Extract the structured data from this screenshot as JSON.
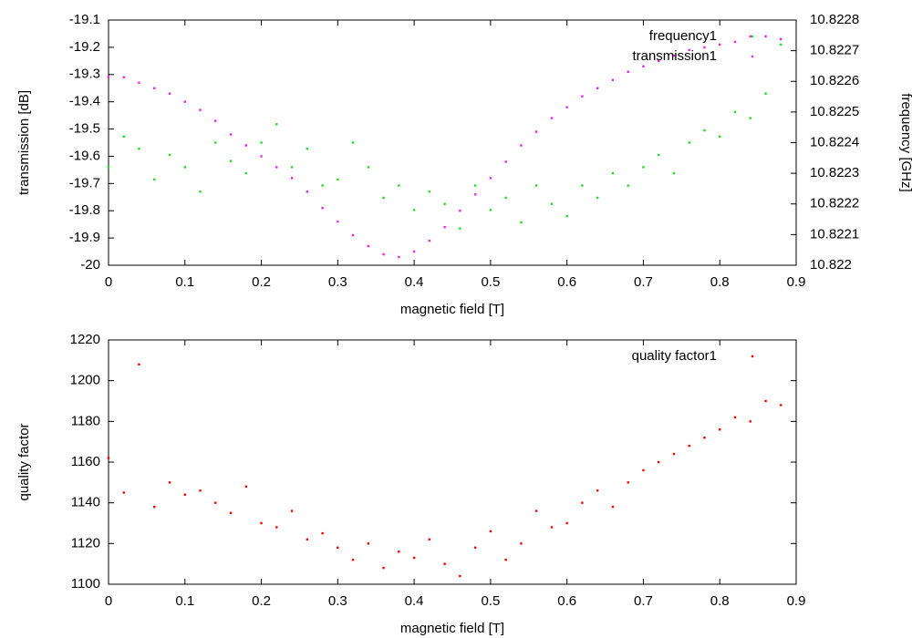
{
  "chart_data": [
    {
      "type": "scatter",
      "xlabel": "magnetic field [T]",
      "ylabel": "transmission [dB]",
      "y2label": "frequency [GHz]",
      "xlim": [
        0,
        0.9
      ],
      "xticks": [
        0,
        0.1,
        0.2,
        0.3,
        0.4,
        0.5,
        0.6,
        0.7,
        0.8,
        0.9
      ],
      "ylim": [
        -20,
        -19.1
      ],
      "yticks": [
        -20,
        -19.9,
        -19.8,
        -19.7,
        -19.6,
        -19.5,
        -19.4,
        -19.3,
        -19.2,
        -19.1
      ],
      "y2lim": [
        10.822,
        10.8228
      ],
      "y2ticks": [
        10.822,
        10.8221,
        10.8222,
        10.8223,
        10.8224,
        10.8225,
        10.8226,
        10.8227,
        10.8228
      ],
      "x": [
        0,
        0.02,
        0.04,
        0.06,
        0.08,
        0.1,
        0.12,
        0.14,
        0.16,
        0.18,
        0.2,
        0.22,
        0.24,
        0.26,
        0.28,
        0.3,
        0.32,
        0.34,
        0.36,
        0.38,
        0.4,
        0.42,
        0.44,
        0.46,
        0.48,
        0.5,
        0.52,
        0.54,
        0.56,
        0.58,
        0.6,
        0.62,
        0.64,
        0.66,
        0.68,
        0.7,
        0.72,
        0.74,
        0.76,
        0.78,
        0.8,
        0.82,
        0.84,
        0.86,
        0.88
      ],
      "series": [
        {
          "name": "frequency1",
          "color": "#22dd22",
          "axis": "y2",
          "values": [
            10.82232,
            10.82242,
            10.82238,
            10.82228,
            10.82236,
            10.82232,
            10.82224,
            10.8224,
            10.82234,
            10.8223,
            10.8224,
            10.82246,
            10.82232,
            10.82238,
            10.82226,
            10.82228,
            10.8224,
            10.82232,
            10.82222,
            10.82226,
            10.82218,
            10.82224,
            10.8222,
            10.82212,
            10.82226,
            10.82218,
            10.82222,
            10.82214,
            10.82226,
            10.8222,
            10.82216,
            10.82226,
            10.82222,
            10.8223,
            10.82226,
            10.82232,
            10.82236,
            10.8223,
            10.8224,
            10.82244,
            10.82242,
            10.8225,
            10.82248,
            10.82256,
            10.82272
          ]
        },
        {
          "name": "transmission1",
          "color": "#ee22ee",
          "values": [
            -19.31,
            -19.31,
            -19.33,
            -19.35,
            -19.37,
            -19.4,
            -19.43,
            -19.47,
            -19.52,
            -19.56,
            -19.6,
            -19.64,
            -19.68,
            -19.73,
            -19.79,
            -19.84,
            -19.89,
            -19.93,
            -19.96,
            -19.97,
            -19.95,
            -19.91,
            -19.86,
            -19.8,
            -19.74,
            -19.68,
            -19.62,
            -19.56,
            -19.51,
            -19.46,
            -19.42,
            -19.38,
            -19.35,
            -19.32,
            -19.29,
            -19.27,
            -19.25,
            -19.23,
            -19.21,
            -19.2,
            -19.19,
            -19.18,
            -19.16,
            -19.16,
            -19.17
          ]
        }
      ]
    },
    {
      "type": "scatter",
      "xlabel": "magnetic field [T]",
      "ylabel": "quality factor",
      "xlim": [
        0,
        0.9
      ],
      "xticks": [
        0,
        0.1,
        0.2,
        0.3,
        0.4,
        0.5,
        0.6,
        0.7,
        0.8,
        0.9
      ],
      "ylim": [
        1100,
        1220
      ],
      "yticks": [
        1100,
        1120,
        1140,
        1160,
        1180,
        1200,
        1220
      ],
      "x": [
        0,
        0.02,
        0.04,
        0.06,
        0.08,
        0.1,
        0.12,
        0.14,
        0.16,
        0.18,
        0.2,
        0.22,
        0.24,
        0.26,
        0.28,
        0.3,
        0.32,
        0.34,
        0.36,
        0.38,
        0.4,
        0.42,
        0.44,
        0.46,
        0.48,
        0.5,
        0.52,
        0.54,
        0.56,
        0.58,
        0.6,
        0.62,
        0.64,
        0.66,
        0.68,
        0.7,
        0.72,
        0.74,
        0.76,
        0.78,
        0.8,
        0.82,
        0.84,
        0.86,
        0.88
      ],
      "series": [
        {
          "name": "quality factor1",
          "color": "#ff0000",
          "values": [
            1162,
            1145,
            1208,
            1138,
            1150,
            1144,
            1146,
            1140,
            1135,
            1148,
            1130,
            1128,
            1136,
            1122,
            1125,
            1118,
            1112,
            1120,
            1108,
            1116,
            1113,
            1122,
            1110,
            1104,
            1118,
            1126,
            1112,
            1120,
            1136,
            1128,
            1130,
            1140,
            1146,
            1138,
            1150,
            1156,
            1160,
            1164,
            1168,
            1172,
            1176,
            1182,
            1180,
            1190,
            1188
          ]
        }
      ]
    }
  ]
}
